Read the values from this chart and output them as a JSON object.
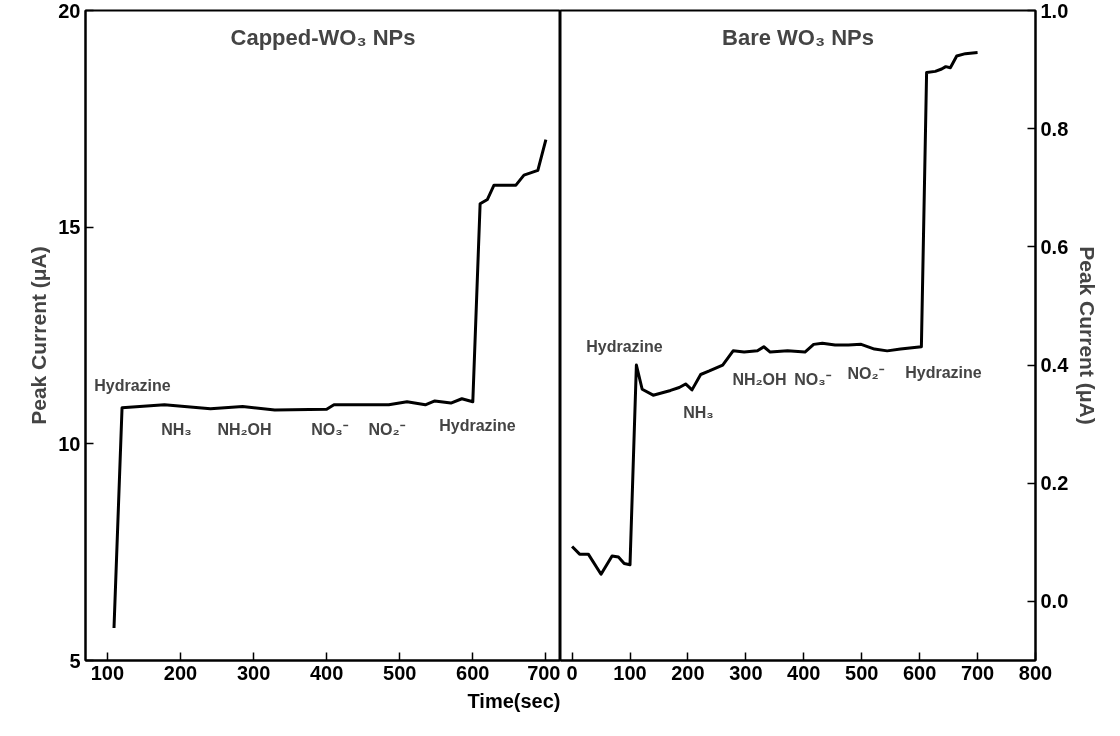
{
  "chart_data": [
    {
      "type": "line",
      "title": "Capped-WO₃ NPs",
      "xlabel": "Time(sec)",
      "ylabel": "Peak Current (μA)",
      "color": "#000000",
      "grid": false,
      "x": [
        109,
        120,
        178,
        241,
        285,
        329,
        400,
        410,
        447,
        485,
        510,
        535,
        548,
        570,
        585,
        600,
        610,
        620,
        629,
        659,
        670,
        689,
        700
      ],
      "values": [
        5.75,
        10.83,
        10.9,
        10.81,
        10.86,
        10.78,
        10.8,
        10.9,
        10.9,
        10.9,
        10.97,
        10.9,
        10.99,
        10.94,
        11.04,
        10.97,
        15.54,
        15.64,
        15.97,
        15.97,
        16.2,
        16.31,
        17.02
      ],
      "xlim": [
        70,
        720
      ],
      "ylim": [
        5,
        20
      ],
      "xticks": [
        100,
        200,
        300,
        400,
        500,
        600,
        700
      ],
      "yticks": [
        5,
        10,
        15,
        20
      ],
      "annotations": [
        "Hydrazine",
        "NH₃",
        "NH₂OH",
        "NO₃⁻",
        "NO₂⁻",
        "Hydrazine"
      ]
    },
    {
      "type": "line",
      "title": "Bare WO₃ NPs",
      "ylabel": "Peak Current (μA)",
      "color": "#000000",
      "grid": false,
      "x": [
        0,
        13,
        28,
        50,
        69,
        80,
        90,
        100,
        111,
        121,
        140,
        170,
        185,
        196,
        207,
        222,
        237,
        260,
        278,
        297,
        320,
        331,
        342,
        372,
        402,
        417,
        432,
        454,
        477,
        499,
        522,
        544,
        567,
        603,
        612,
        627,
        638,
        645,
        653,
        664,
        679,
        700
      ],
      "values": [
        0.093,
        0.08,
        0.08,
        0.046,
        0.077,
        0.075,
        0.064,
        0.062,
        0.4,
        0.359,
        0.349,
        0.357,
        0.362,
        0.368,
        0.358,
        0.384,
        0.39,
        0.4,
        0.424,
        0.422,
        0.424,
        0.431,
        0.422,
        0.424,
        0.422,
        0.435,
        0.437,
        0.434,
        0.434,
        0.435,
        0.427,
        0.424,
        0.427,
        0.431,
        0.895,
        0.897,
        0.901,
        0.905,
        0.903,
        0.923,
        0.927,
        0.929
      ],
      "xlim": [
        -20,
        800
      ],
      "ylim": [
        -0.1,
        1.0
      ],
      "xticks": [
        0,
        100,
        200,
        300,
        400,
        500,
        600,
        700,
        800
      ],
      "yticks": [
        {
          "value": 0,
          "label": "0.0"
        },
        0.2,
        0.4,
        0.6,
        0.8,
        {
          "value": 1,
          "label": "1.0"
        }
      ],
      "annotations": [
        "Hydrazine",
        "NH₃",
        "NH₂OH",
        "NO₃⁻",
        "NO₂⁻",
        "Hydrazine"
      ]
    }
  ]
}
